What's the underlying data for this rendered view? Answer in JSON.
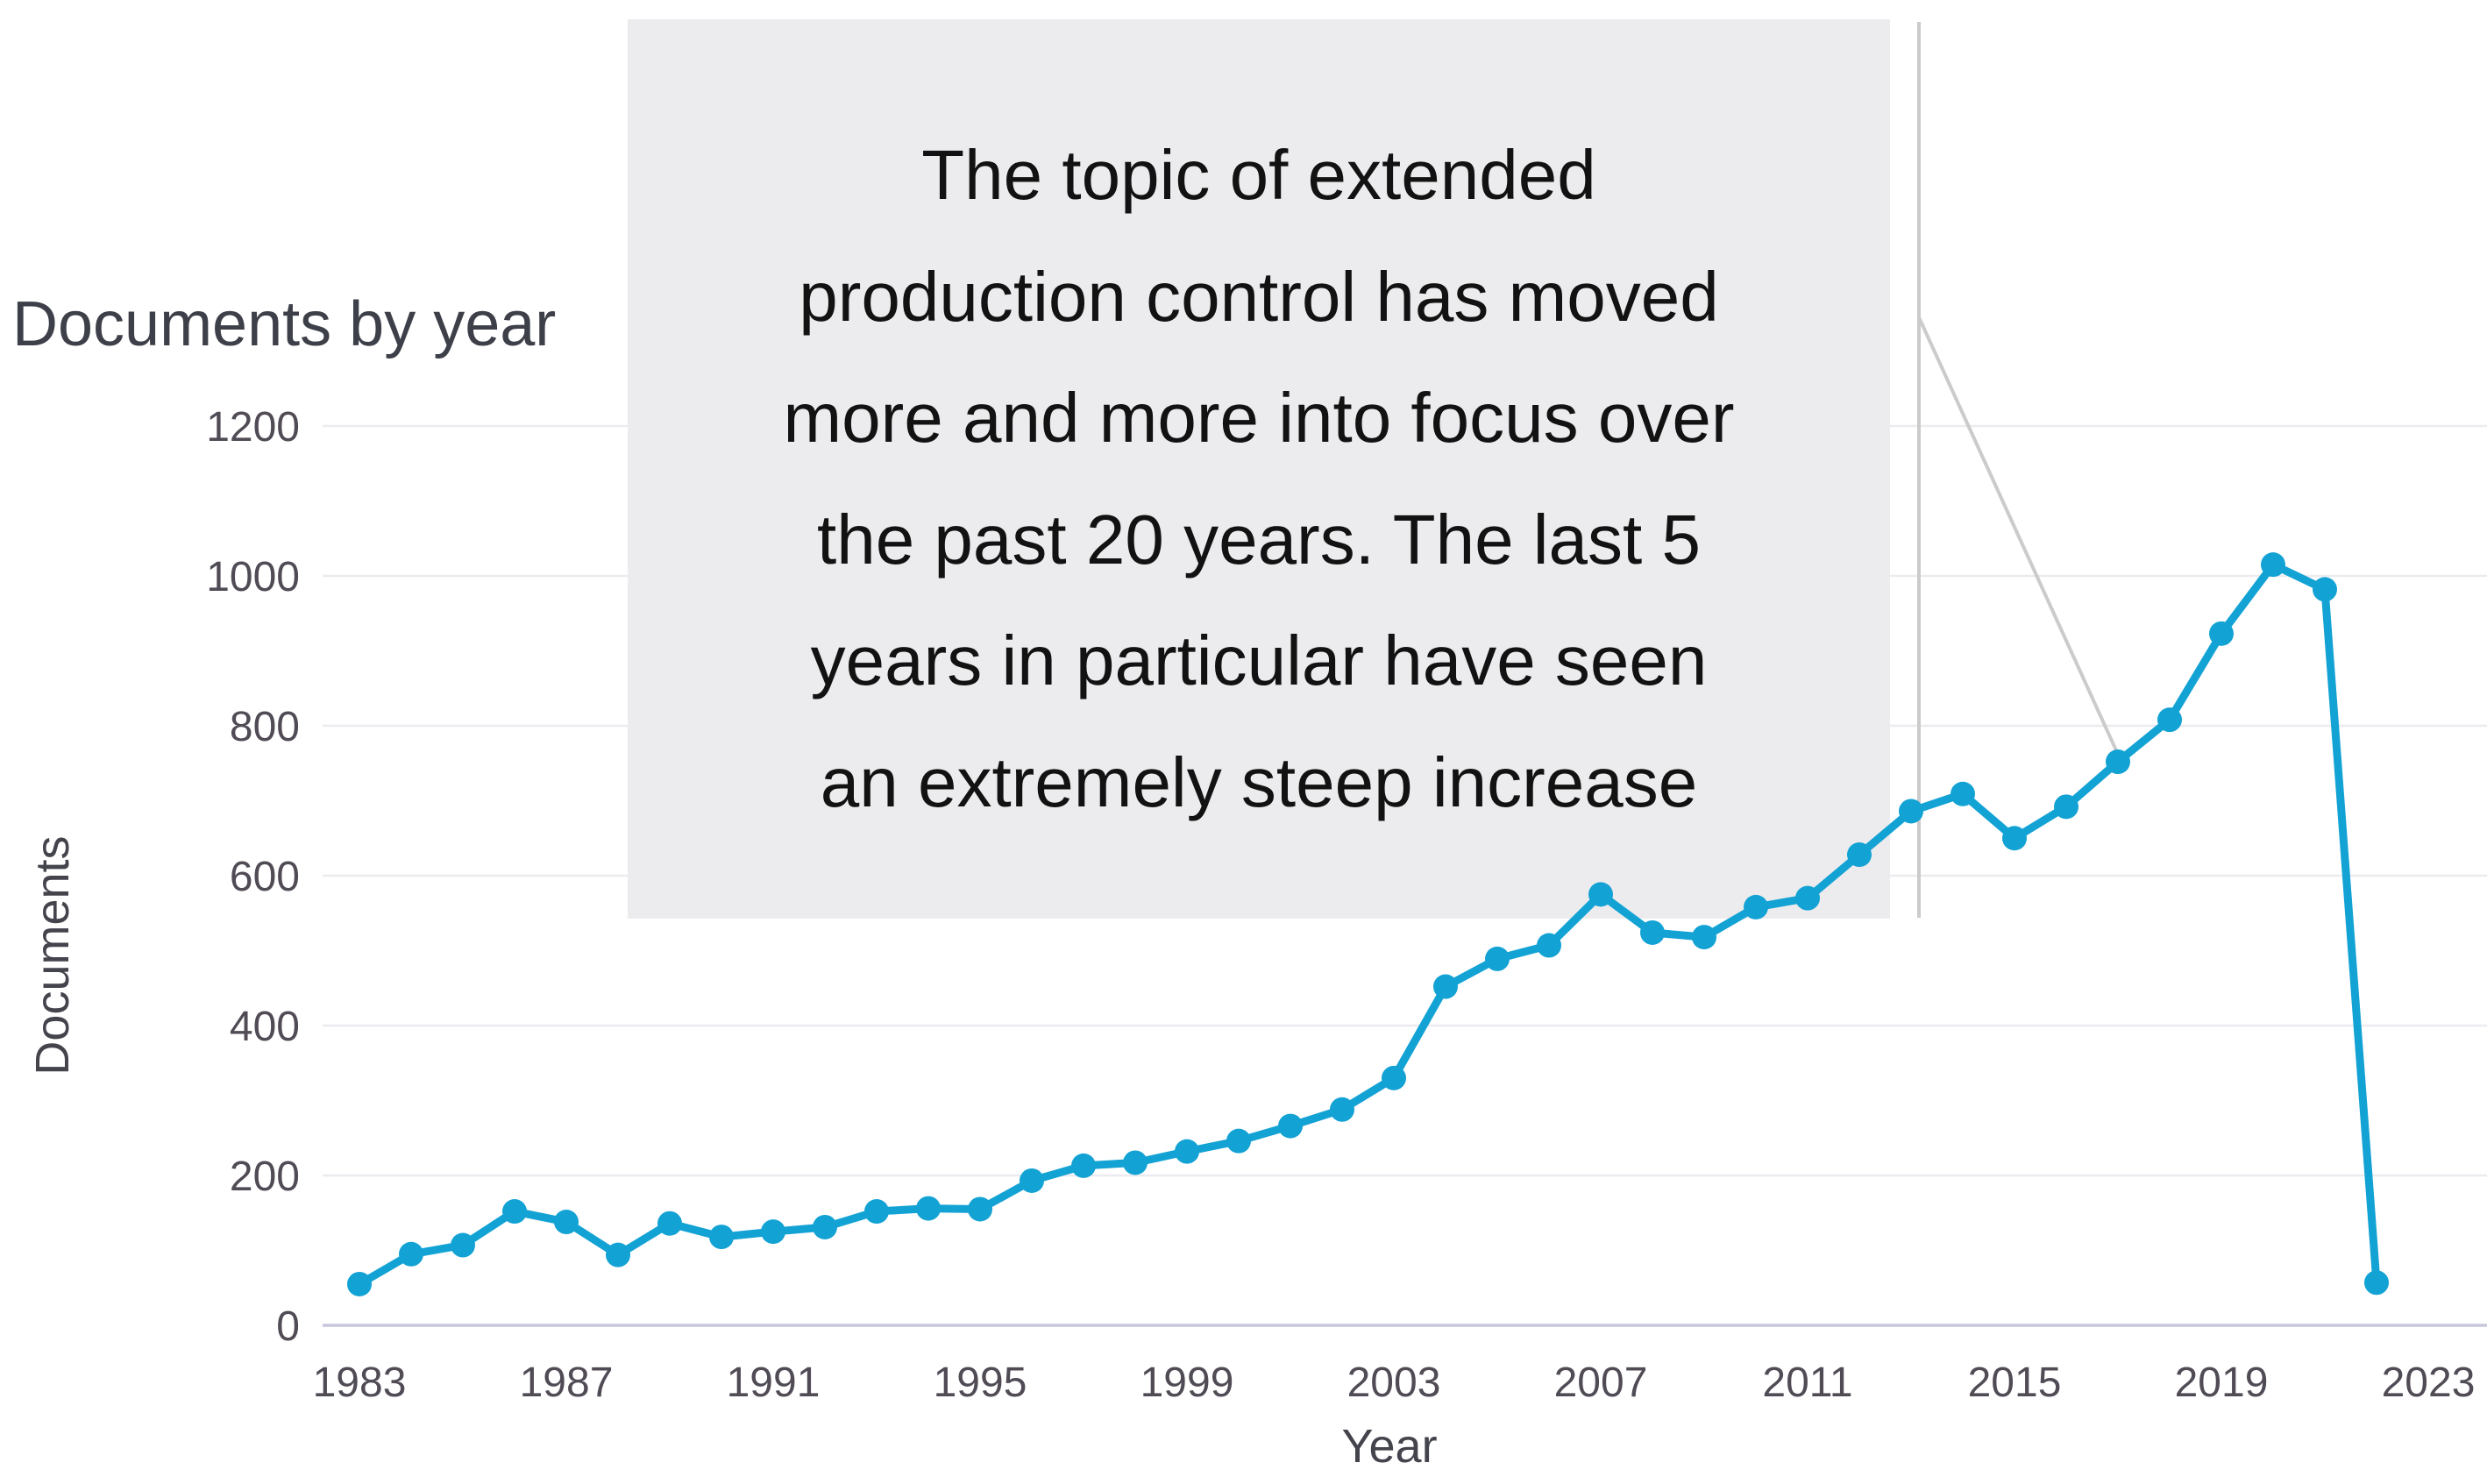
{
  "chart_data": {
    "type": "line",
    "title": "Documents by year",
    "xlabel": "Year",
    "ylabel": "Documents",
    "series": [
      {
        "name": "Documents",
        "x": [
          1983,
          1984,
          1985,
          1986,
          1987,
          1988,
          1989,
          1990,
          1991,
          1992,
          1993,
          1994,
          1995,
          1996,
          1997,
          1998,
          1999,
          2000,
          2001,
          2002,
          2003,
          2004,
          2005,
          2006,
          2007,
          2008,
          2009,
          2010,
          2011,
          2012,
          2013,
          2014,
          2015,
          2016,
          2017,
          2018,
          2019,
          2020,
          2021,
          2022
        ],
        "values": [
          55,
          95,
          107,
          152,
          138,
          94,
          136,
          118,
          125,
          131,
          152,
          156,
          155,
          193,
          213,
          217,
          232,
          246,
          266,
          288,
          330,
          452,
          489,
          507,
          575,
          524,
          518,
          558,
          570,
          628,
          686,
          709,
          650,
          692,
          752,
          808,
          923,
          1015,
          982,
          57
        ]
      }
    ],
    "xlim": [
      1983,
      2023
    ],
    "ylim": [
      0,
      1200
    ],
    "x_ticks": [
      "1983",
      "1987",
      "1991",
      "1995",
      "1999",
      "2003",
      "2007",
      "2011",
      "2015",
      "2019",
      "2023"
    ],
    "y_ticks": [
      "0",
      "200",
      "400",
      "600",
      "800",
      "1000",
      "1200"
    ],
    "grid": "horizontal",
    "legend_position": "none",
    "colors": {
      "line": "#12a2d4",
      "grid": "#ebebf0",
      "axis_line": "#c7c7dc",
      "label_text": "#504b55",
      "title_text": "#3d4049",
      "annotation_box": "#ececee",
      "callout_line": "#cbcbcb"
    },
    "annotation": {
      "lines": [
        "The topic of extended",
        "production control has moved",
        "more and more into focus over",
        "the past 20 years. The last 5",
        "years in particular have seen",
        "an extremely steep increase"
      ],
      "points_to_year": 2017
    }
  }
}
